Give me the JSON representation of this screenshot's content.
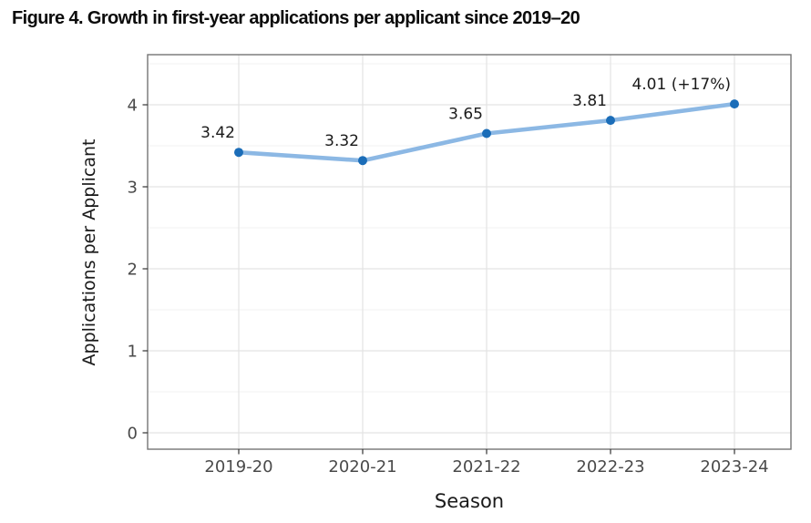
{
  "figure": {
    "title": "Figure 4. Growth in first-year applications per applicant since 2019–20"
  },
  "chart_data": {
    "type": "line",
    "title": "Figure 4. Growth in first-year applications per applicant since 2019–20",
    "xlabel": "Season",
    "ylabel": "Applications per Applicant",
    "categories": [
      "2019-20",
      "2020-21",
      "2021-22",
      "2022-23",
      "2023-24"
    ],
    "series": [
      {
        "name": "Applications per Applicant",
        "values": [
          3.42,
          3.32,
          3.65,
          3.81,
          4.01
        ],
        "point_labels": [
          "3.42",
          "3.32",
          "3.65",
          "3.81",
          "4.01 (+17%)"
        ]
      }
    ],
    "y_ticks": [
      0,
      1,
      2,
      3,
      4
    ],
    "y_minor_ticks": [
      0.5,
      1.5,
      2.5,
      3.5,
      4.5
    ],
    "ylim": [
      -0.2,
      4.6
    ],
    "legend": "none",
    "grid": "horizontal major+minor, vertical major per category",
    "colors": {
      "line": "#8cb8e4",
      "point": "#1b6db8",
      "grid_major": "#e3e3e3",
      "grid_minor": "#f0f0f0",
      "panel_border": "#757575",
      "tick_mark": "#333333",
      "axis_text": "#4a4a4a",
      "data_label": "#1a1a1a",
      "background": "#ffffff"
    }
  }
}
